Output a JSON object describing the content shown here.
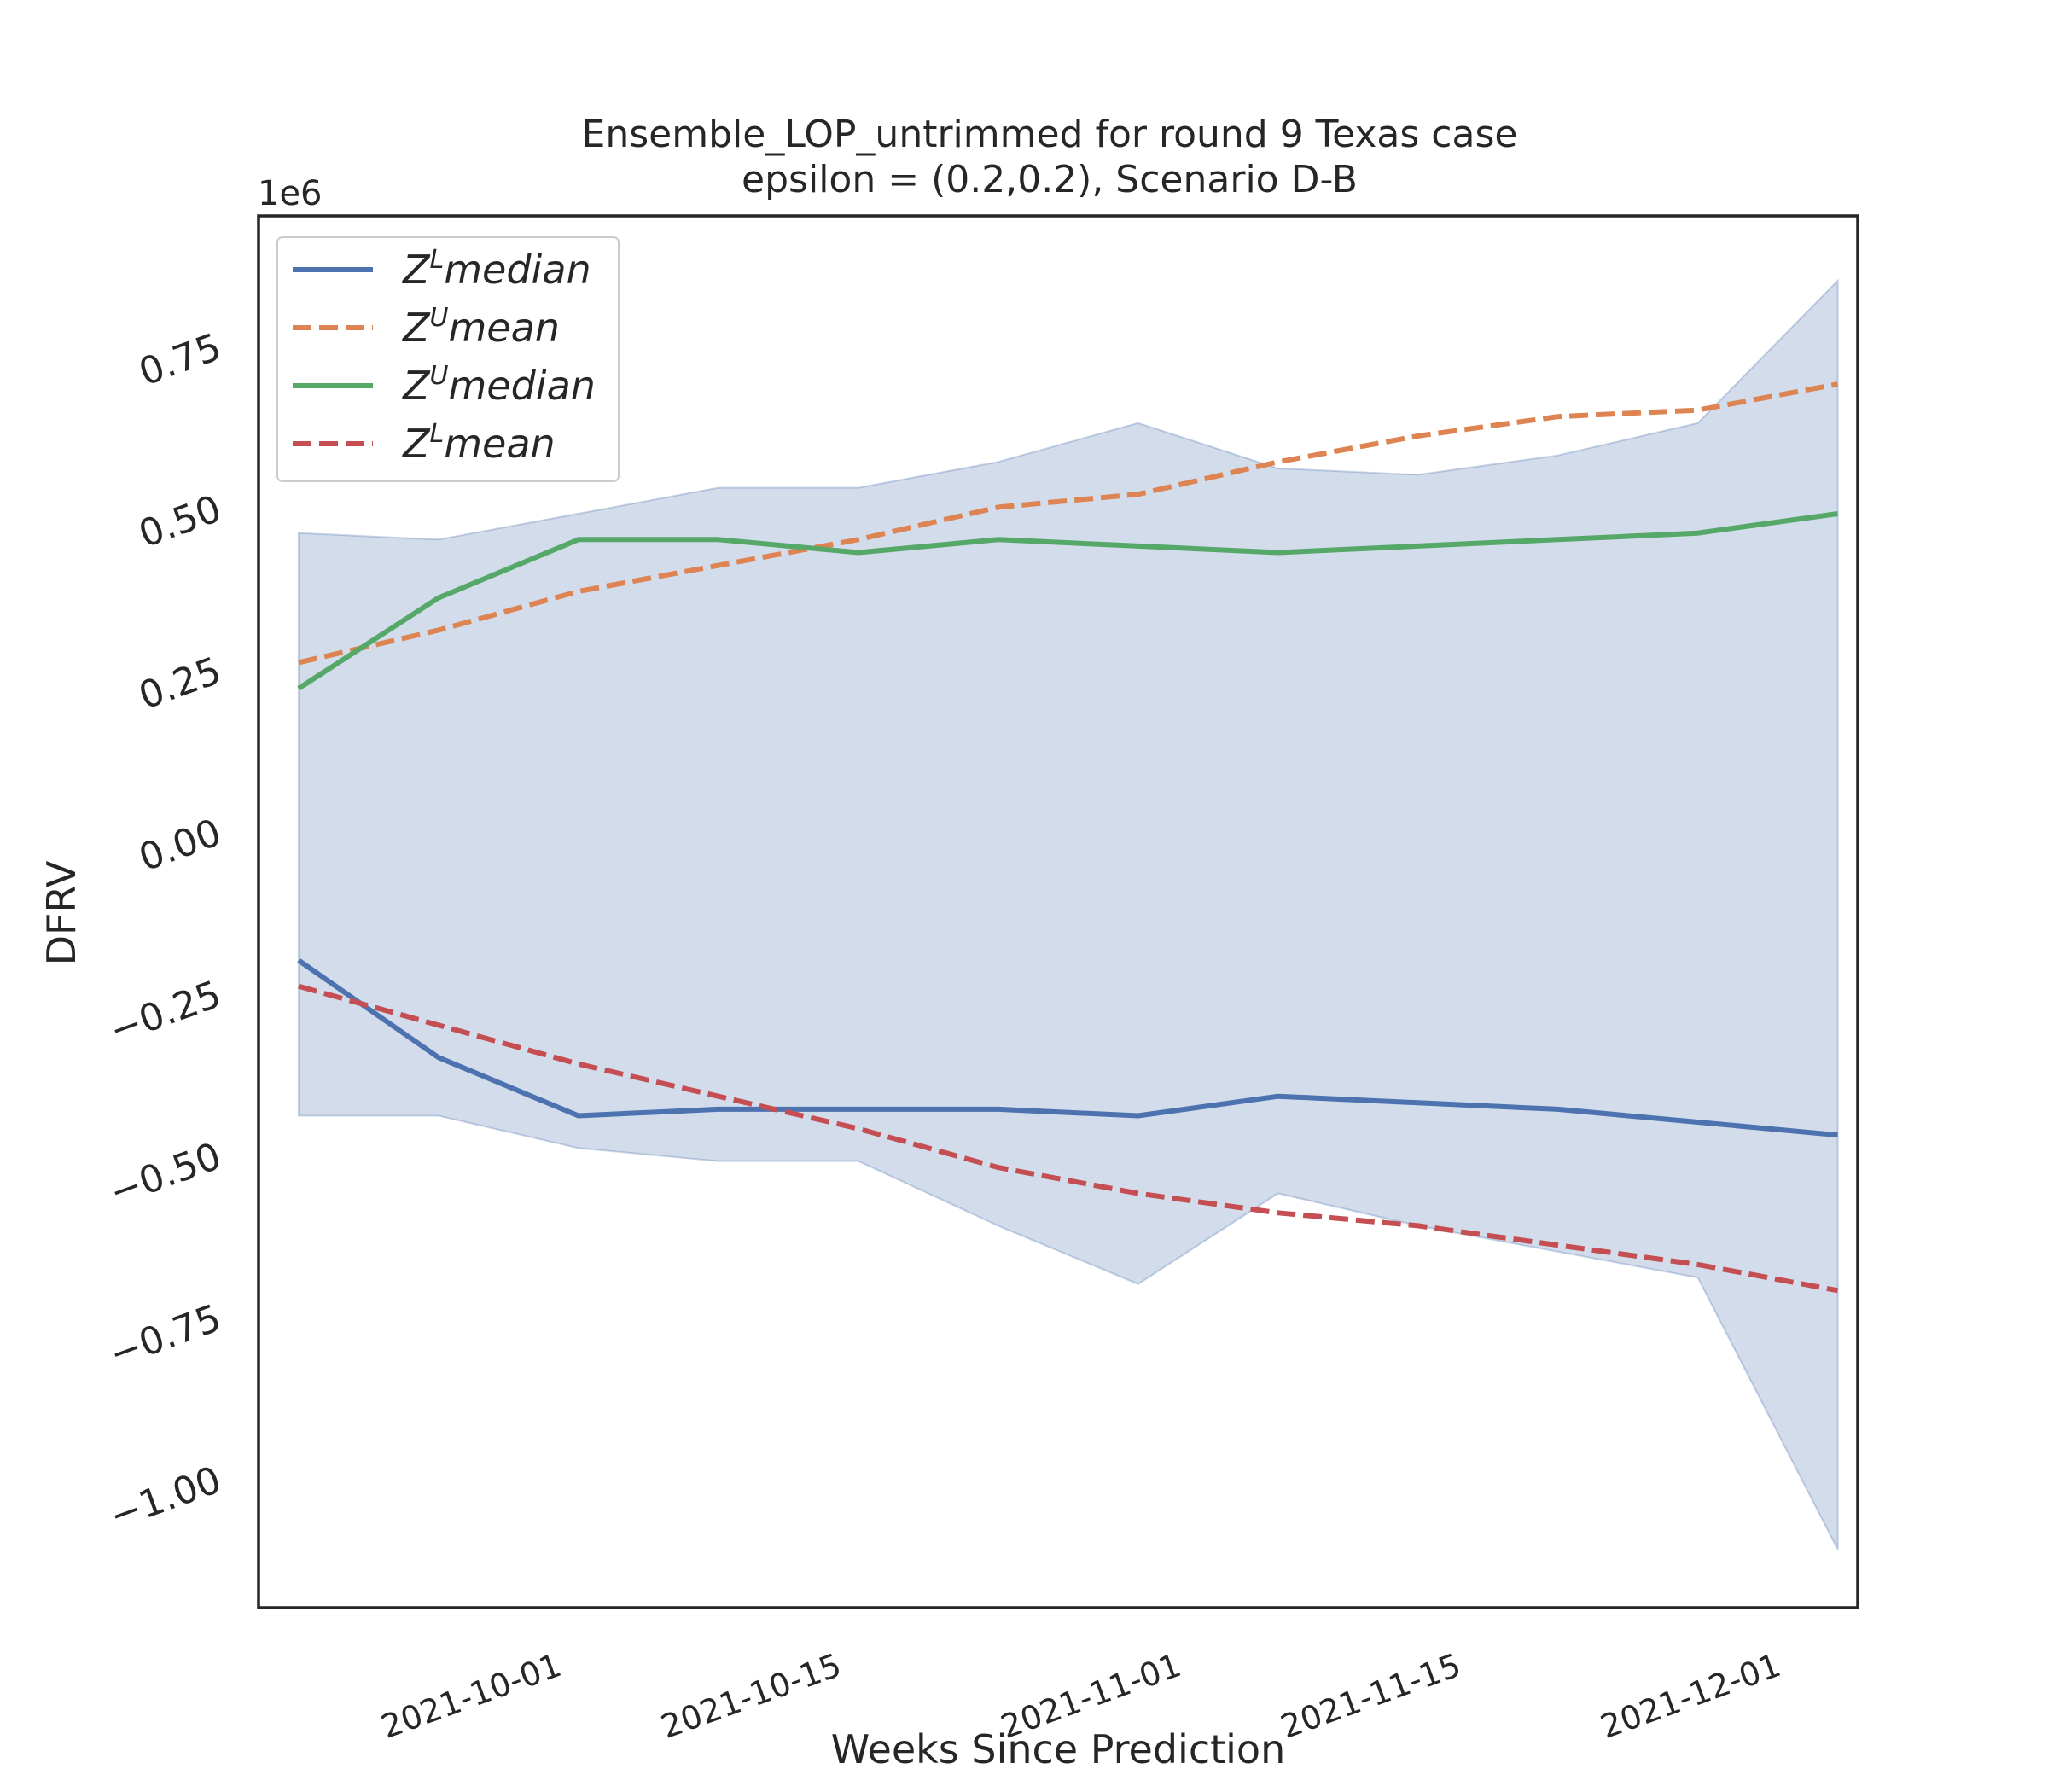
{
  "chart_data": {
    "type": "line",
    "title": "Ensemble_LOP_untrimmed for round 9 Texas  case",
    "subtitle": "epsilon = (0.2,0.2), Scenario D-B",
    "xlabel": "Weeks Since Prediction",
    "ylabel": "DFRV",
    "y_offset_label": "1e6",
    "y_multiplier": 1000000,
    "ylim": [
      -1.2,
      0.95
    ],
    "xlim": [
      "2021-09-16",
      "2021-12-05"
    ],
    "x": [
      "2021-09-18",
      "2021-09-25",
      "2021-10-02",
      "2021-10-09",
      "2021-10-16",
      "2021-10-23",
      "2021-10-30",
      "2021-11-06",
      "2021-11-13",
      "2021-11-20",
      "2021-11-27",
      "2021-12-04"
    ],
    "x_ticks": [
      "2021-10-01",
      "2021-10-15",
      "2021-11-01",
      "2021-11-15",
      "2021-12-01"
    ],
    "y_ticks": [
      0.75,
      0.5,
      0.25,
      0.0,
      -0.25,
      -0.5,
      -0.75,
      -1.0
    ],
    "y_tick_labels": [
      "0.75",
      "0.50",
      "0.25",
      "0.00",
      "−0.25",
      "−0.50",
      "−0.75",
      "−1.00"
    ],
    "band": {
      "upper": [
        0.46,
        0.45,
        0.49,
        0.53,
        0.53,
        0.57,
        0.63,
        0.56,
        0.55,
        0.58,
        0.63,
        0.85
      ],
      "lower": [
        -0.44,
        -0.44,
        -0.49,
        -0.51,
        -0.51,
        -0.61,
        -0.7,
        -0.56,
        -0.61,
        -0.65,
        -0.69,
        -1.11
      ],
      "color": "#4c72b0",
      "opacity": 0.25
    },
    "series": [
      {
        "name": "Z^L median",
        "base": "Z",
        "sup": "L",
        "suffix": "median",
        "color": "#4c72b0",
        "dashed": false,
        "values": [
          -0.2,
          -0.35,
          -0.44,
          -0.43,
          -0.43,
          -0.43,
          -0.44,
          -0.41,
          -0.42,
          -0.43,
          -0.45,
          -0.47
        ]
      },
      {
        "name": "Z^U mean",
        "base": "Z",
        "sup": "U",
        "suffix": "mean",
        "color": "#dd8452",
        "dashed": true,
        "values": [
          0.26,
          0.31,
          0.37,
          0.41,
          0.45,
          0.5,
          0.52,
          0.57,
          0.61,
          0.64,
          0.65,
          0.69
        ]
      },
      {
        "name": "Z^U median",
        "base": "Z",
        "sup": "U",
        "suffix": "median",
        "color": "#55a868",
        "dashed": false,
        "values": [
          0.22,
          0.36,
          0.45,
          0.45,
          0.43,
          0.45,
          0.44,
          0.43,
          0.44,
          0.45,
          0.46,
          0.49
        ]
      },
      {
        "name": "Z^L mean",
        "base": "Z",
        "sup": "L",
        "suffix": "mean",
        "color": "#c44e52",
        "dashed": true,
        "values": [
          -0.24,
          -0.3,
          -0.36,
          -0.41,
          -0.46,
          -0.52,
          -0.56,
          -0.59,
          -0.61,
          -0.64,
          -0.67,
          -0.71
        ]
      }
    ],
    "legend_position": "top-left",
    "grid": false
  }
}
